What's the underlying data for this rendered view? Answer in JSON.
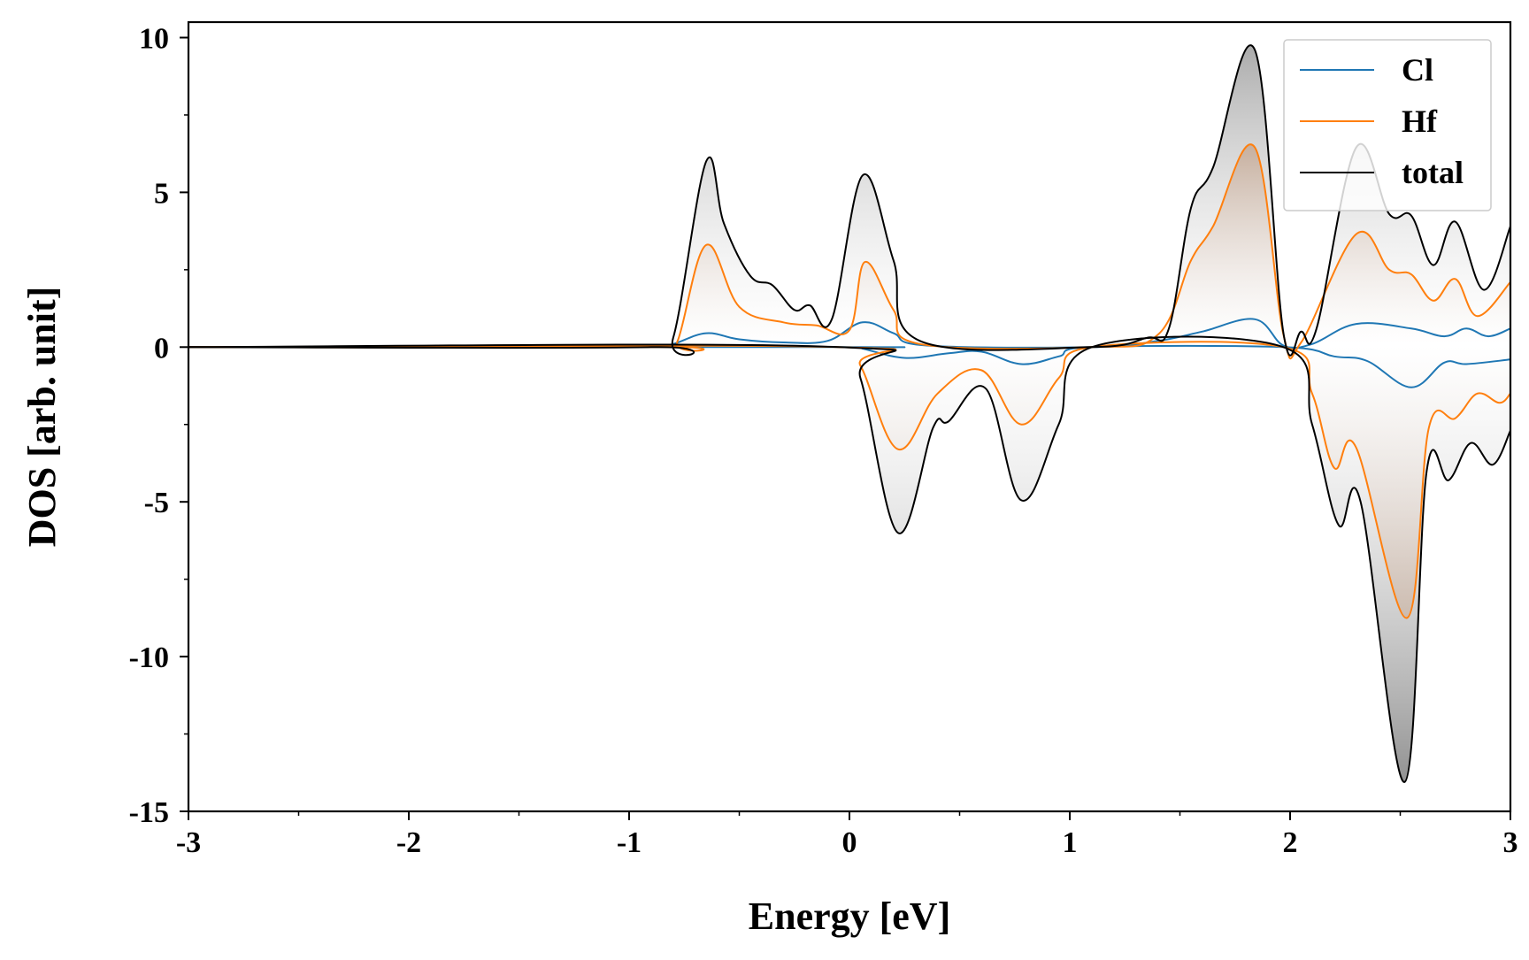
{
  "chart_data": {
    "type": "line",
    "xlabel": "Energy [eV]",
    "ylabel": "DOS [arb. unit]",
    "xlim": [
      -3,
      3
    ],
    "ylim": [
      -15,
      10.5
    ],
    "xticks": [
      -3,
      -2,
      -1,
      0,
      1,
      2,
      3
    ],
    "yticks": [
      10,
      5,
      0,
      -5,
      -10,
      -15
    ],
    "grid": false,
    "legend_position": "top-right",
    "fill": "gradient between series and zero",
    "series": [
      {
        "name": "Cl",
        "color": "#1f77b4",
        "up": [
          [
            -3,
            0
          ],
          [
            -0.9,
            0
          ],
          [
            -0.8,
            0.1
          ],
          [
            -0.65,
            0.45
          ],
          [
            -0.5,
            0.25
          ],
          [
            -0.3,
            0.15
          ],
          [
            -0.1,
            0.2
          ],
          [
            0.06,
            0.8
          ],
          [
            0.2,
            0.45
          ],
          [
            0.35,
            0.05
          ],
          [
            1.1,
            0
          ],
          [
            1.4,
            0.2
          ],
          [
            1.6,
            0.5
          ],
          [
            1.84,
            0.9
          ],
          [
            1.97,
            0.05
          ],
          [
            2.1,
            0.1
          ],
          [
            2.3,
            0.75
          ],
          [
            2.55,
            0.6
          ],
          [
            2.7,
            0.35
          ],
          [
            2.8,
            0.6
          ],
          [
            2.9,
            0.35
          ],
          [
            3,
            0.6
          ]
        ],
        "down": [
          [
            -3,
            0
          ],
          [
            0,
            0
          ],
          [
            0.06,
            -0.05
          ],
          [
            0.25,
            -0.35
          ],
          [
            0.45,
            -0.2
          ],
          [
            0.6,
            -0.15
          ],
          [
            0.78,
            -0.55
          ],
          [
            0.95,
            -0.3
          ],
          [
            1.1,
            0
          ],
          [
            1.97,
            0
          ],
          [
            2.2,
            -0.3
          ],
          [
            2.35,
            -0.45
          ],
          [
            2.55,
            -1.3
          ],
          [
            2.7,
            -0.5
          ],
          [
            2.8,
            -0.55
          ],
          [
            3,
            -0.4
          ]
        ]
      },
      {
        "name": "Hf",
        "color": "#ff7f0e",
        "up": [
          [
            -3,
            0
          ],
          [
            -0.85,
            0
          ],
          [
            -0.78,
            0.2
          ],
          [
            -0.65,
            3.3
          ],
          [
            -0.5,
            1.3
          ],
          [
            -0.3,
            0.8
          ],
          [
            -0.15,
            0.7
          ],
          [
            0,
            0.55
          ],
          [
            0.07,
            2.75
          ],
          [
            0.2,
            1.2
          ],
          [
            0.32,
            0.1
          ],
          [
            1.1,
            0
          ],
          [
            1.4,
            0.4
          ],
          [
            1.55,
            2.8
          ],
          [
            1.65,
            3.9
          ],
          [
            1.84,
            6.45
          ],
          [
            1.97,
            0.4
          ],
          [
            2.05,
            0.15
          ],
          [
            2.3,
            3.65
          ],
          [
            2.45,
            2.5
          ],
          [
            2.55,
            2.35
          ],
          [
            2.65,
            1.5
          ],
          [
            2.75,
            2.2
          ],
          [
            2.85,
            1.0
          ],
          [
            3,
            2.1
          ]
        ],
        "down": [
          [
            -3,
            0
          ],
          [
            -0.05,
            0
          ],
          [
            0.05,
            -0.6
          ],
          [
            0.22,
            -3.3
          ],
          [
            0.4,
            -1.5
          ],
          [
            0.6,
            -0.75
          ],
          [
            0.78,
            -2.5
          ],
          [
            0.95,
            -1.0
          ],
          [
            1.1,
            0
          ],
          [
            1.97,
            0
          ],
          [
            2.1,
            -1.5
          ],
          [
            2.2,
            -3.9
          ],
          [
            2.3,
            -3.25
          ],
          [
            2.53,
            -8.75
          ],
          [
            2.63,
            -2.6
          ],
          [
            2.75,
            -2.3
          ],
          [
            2.85,
            -1.5
          ],
          [
            2.95,
            -1.8
          ],
          [
            3,
            -1.5
          ]
        ]
      },
      {
        "name": "total",
        "color": "#000000",
        "up": [
          [
            -3,
            0
          ],
          [
            -0.9,
            0
          ],
          [
            -0.8,
            0.3
          ],
          [
            -0.65,
            6.0
          ],
          [
            -0.57,
            4.0
          ],
          [
            -0.45,
            2.3
          ],
          [
            -0.35,
            2.0
          ],
          [
            -0.25,
            1.2
          ],
          [
            -0.18,
            1.35
          ],
          [
            -0.08,
            0.9
          ],
          [
            0.06,
            5.55
          ],
          [
            0.2,
            2.8
          ],
          [
            0.32,
            0.2
          ],
          [
            1.1,
            0
          ],
          [
            1.35,
            0.3
          ],
          [
            1.45,
            0.6
          ],
          [
            1.55,
            4.5
          ],
          [
            1.65,
            5.8
          ],
          [
            1.84,
            9.6
          ],
          [
            1.97,
            0.45
          ],
          [
            2.05,
            0.5
          ],
          [
            2.12,
            0.6
          ],
          [
            2.3,
            6.45
          ],
          [
            2.45,
            4.3
          ],
          [
            2.55,
            4.25
          ],
          [
            2.65,
            2.65
          ],
          [
            2.75,
            4.05
          ],
          [
            2.88,
            1.85
          ],
          [
            3,
            3.9
          ]
        ],
        "down": [
          [
            -3,
            0
          ],
          [
            -0.05,
            0
          ],
          [
            0.05,
            -1.0
          ],
          [
            0.22,
            -6.0
          ],
          [
            0.38,
            -2.6
          ],
          [
            0.45,
            -2.4
          ],
          [
            0.62,
            -1.35
          ],
          [
            0.78,
            -4.95
          ],
          [
            0.95,
            -2.5
          ],
          [
            1.1,
            0
          ],
          [
            1.97,
            0
          ],
          [
            2.1,
            -2.5
          ],
          [
            2.22,
            -5.75
          ],
          [
            2.32,
            -5.0
          ],
          [
            2.52,
            -14.05
          ],
          [
            2.62,
            -4.0
          ],
          [
            2.72,
            -4.3
          ],
          [
            2.82,
            -3.1
          ],
          [
            2.92,
            -3.8
          ],
          [
            3,
            -2.7
          ]
        ]
      }
    ]
  }
}
